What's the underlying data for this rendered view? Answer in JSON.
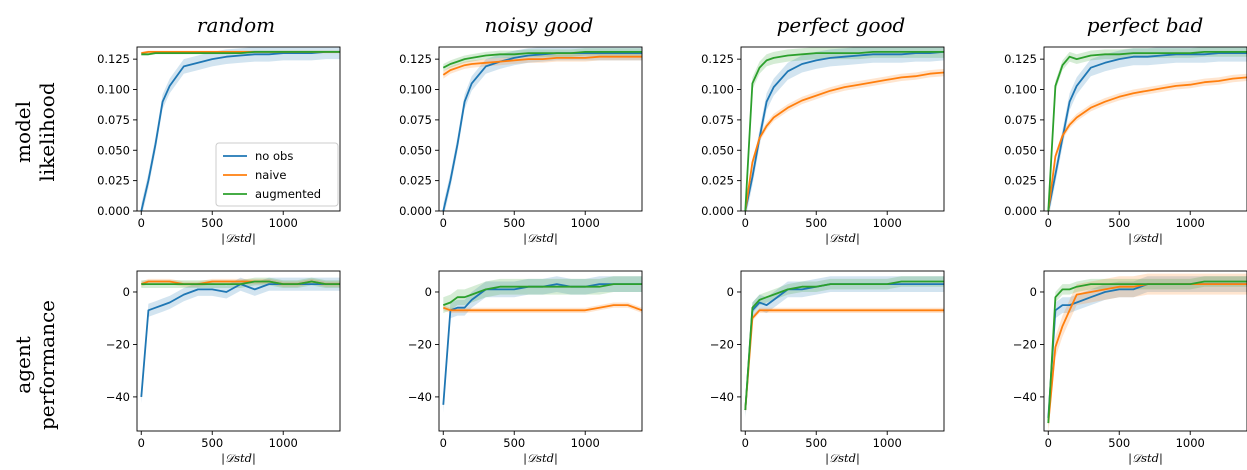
{
  "figure": {
    "col_titles": [
      "random",
      "noisy good",
      "perfect good",
      "perfect bad"
    ],
    "row_titles": [
      [
        "model",
        "likelihood"
      ],
      [
        "agent",
        "performance"
      ]
    ],
    "xlabel": "|𝒟std|"
  },
  "legend": {
    "entries": [
      {
        "name": "no obs",
        "color": "#1f77b4"
      },
      {
        "name": "naive",
        "color": "#ff7f0e"
      },
      {
        "name": "augmented",
        "color": "#2ca02c"
      }
    ],
    "placement": "lower-right of top-left panel"
  },
  "chart_data": [
    {
      "type": "line",
      "title": "random",
      "row": "model likelihood",
      "xlim": [
        -30,
        1400
      ],
      "ylim": [
        0,
        0.135
      ],
      "xticks": [
        "0",
        "500",
        "1000"
      ],
      "xtick_values": [
        0,
        500,
        1000
      ],
      "yticks": [
        "0.000",
        "0.025",
        "0.050",
        "0.075",
        "0.100",
        "0.125"
      ],
      "ytick_values": [
        0,
        0.025,
        0.05,
        0.075,
        0.1,
        0.125
      ],
      "x": [
        0,
        50,
        100,
        150,
        200,
        300,
        400,
        500,
        600,
        700,
        800,
        900,
        1000,
        1100,
        1200,
        1300,
        1400
      ],
      "series": [
        {
          "name": "no obs",
          "values": [
            0,
            0.025,
            0.055,
            0.09,
            0.103,
            0.119,
            0.122,
            0.125,
            0.127,
            0.128,
            0.129,
            0.129,
            0.13,
            0.13,
            0.13,
            0.131,
            0.131
          ],
          "band": 0.006
        },
        {
          "name": "naive",
          "values": [
            0.13,
            0.131,
            0.131,
            0.131,
            0.131,
            0.131,
            0.131,
            0.131,
            0.131,
            0.131,
            0.131,
            0.131,
            0.131,
            0.131,
            0.131,
            0.131,
            0.131
          ],
          "band": 0.001
        },
        {
          "name": "augmented",
          "values": [
            0.129,
            0.129,
            0.13,
            0.13,
            0.13,
            0.13,
            0.13,
            0.13,
            0.13,
            0.13,
            0.131,
            0.131,
            0.131,
            0.131,
            0.131,
            0.131,
            0.131
          ],
          "band": 0.001
        }
      ]
    },
    {
      "type": "line",
      "title": "noisy good",
      "row": "model likelihood",
      "xlim": [
        -30,
        1400
      ],
      "ylim": [
        0,
        0.135
      ],
      "xticks": [
        "0",
        "500",
        "1000"
      ],
      "xtick_values": [
        0,
        500,
        1000
      ],
      "yticks": [
        "0.000",
        "0.025",
        "0.050",
        "0.075",
        "0.100",
        "0.125"
      ],
      "ytick_values": [
        0,
        0.025,
        0.05,
        0.075,
        0.1,
        0.125
      ],
      "x": [
        0,
        50,
        100,
        150,
        200,
        300,
        400,
        500,
        600,
        700,
        800,
        900,
        1000,
        1100,
        1200,
        1300,
        1400
      ],
      "series": [
        {
          "name": "no obs",
          "values": [
            0,
            0.025,
            0.055,
            0.09,
            0.105,
            0.119,
            0.123,
            0.126,
            0.128,
            0.129,
            0.13,
            0.13,
            0.13,
            0.13,
            0.13,
            0.13,
            0.13
          ],
          "band": 0.006
        },
        {
          "name": "naive",
          "values": [
            0.112,
            0.116,
            0.118,
            0.12,
            0.121,
            0.122,
            0.123,
            0.124,
            0.125,
            0.125,
            0.126,
            0.126,
            0.126,
            0.127,
            0.127,
            0.127,
            0.127
          ],
          "band": 0.003
        },
        {
          "name": "augmented",
          "values": [
            0.118,
            0.121,
            0.123,
            0.125,
            0.126,
            0.128,
            0.129,
            0.129,
            0.13,
            0.13,
            0.13,
            0.13,
            0.131,
            0.131,
            0.131,
            0.131,
            0.131
          ],
          "band": 0.003
        }
      ]
    },
    {
      "type": "line",
      "title": "perfect good",
      "row": "model likelihood",
      "xlim": [
        -30,
        1400
      ],
      "ylim": [
        0,
        0.135
      ],
      "xticks": [
        "0",
        "500",
        "1000"
      ],
      "xtick_values": [
        0,
        500,
        1000
      ],
      "yticks": [
        "0.000",
        "0.025",
        "0.050",
        "0.075",
        "0.100",
        "0.125"
      ],
      "ytick_values": [
        0,
        0.025,
        0.05,
        0.075,
        0.1,
        0.125
      ],
      "x": [
        0,
        50,
        100,
        150,
        200,
        300,
        400,
        500,
        600,
        700,
        800,
        900,
        1000,
        1100,
        1200,
        1300,
        1400
      ],
      "series": [
        {
          "name": "no obs",
          "values": [
            0,
            0.028,
            0.06,
            0.09,
            0.102,
            0.115,
            0.121,
            0.124,
            0.126,
            0.127,
            0.128,
            0.129,
            0.129,
            0.129,
            0.13,
            0.13,
            0.131
          ],
          "band": 0.007
        },
        {
          "name": "naive",
          "values": [
            0,
            0.04,
            0.06,
            0.07,
            0.077,
            0.085,
            0.091,
            0.095,
            0.099,
            0.102,
            0.104,
            0.106,
            0.108,
            0.11,
            0.111,
            0.113,
            0.114
          ],
          "band": 0.003
        },
        {
          "name": "augmented",
          "values": [
            0,
            0.105,
            0.118,
            0.124,
            0.126,
            0.128,
            0.129,
            0.13,
            0.13,
            0.13,
            0.13,
            0.131,
            0.131,
            0.131,
            0.131,
            0.131,
            0.131
          ],
          "band": 0.005
        }
      ]
    },
    {
      "type": "line",
      "title": "perfect bad",
      "row": "model likelihood",
      "xlim": [
        -30,
        1400
      ],
      "ylim": [
        0,
        0.135
      ],
      "xticks": [
        "0",
        "500",
        "1000"
      ],
      "xtick_values": [
        0,
        500,
        1000
      ],
      "yticks": [
        "0.000",
        "0.025",
        "0.050",
        "0.075",
        "0.100",
        "0.125"
      ],
      "ytick_values": [
        0,
        0.025,
        0.05,
        0.075,
        0.1,
        0.125
      ],
      "x": [
        0,
        50,
        100,
        150,
        200,
        300,
        400,
        500,
        600,
        700,
        800,
        900,
        1000,
        1100,
        1200,
        1300,
        1400
      ],
      "series": [
        {
          "name": "no obs",
          "values": [
            0,
            0.03,
            0.06,
            0.09,
            0.103,
            0.118,
            0.122,
            0.125,
            0.127,
            0.127,
            0.128,
            0.129,
            0.129,
            0.129,
            0.13,
            0.13,
            0.13
          ],
          "band": 0.007
        },
        {
          "name": "naive",
          "values": [
            0,
            0.045,
            0.062,
            0.071,
            0.077,
            0.085,
            0.09,
            0.094,
            0.097,
            0.099,
            0.101,
            0.103,
            0.104,
            0.106,
            0.107,
            0.109,
            0.11
          ],
          "band": 0.003
        },
        {
          "name": "augmented",
          "values": [
            0,
            0.103,
            0.12,
            0.127,
            0.125,
            0.128,
            0.129,
            0.129,
            0.13,
            0.13,
            0.13,
            0.13,
            0.13,
            0.131,
            0.131,
            0.131,
            0.131
          ],
          "band": 0.004
        }
      ]
    },
    {
      "type": "line",
      "title": "random",
      "row": "agent performance",
      "xlim": [
        -30,
        1400
      ],
      "ylim": [
        -53,
        8
      ],
      "xticks": [
        "0",
        "500",
        "1000"
      ],
      "xtick_values": [
        0,
        500,
        1000
      ],
      "yticks": [
        "−40",
        "−20",
        "0"
      ],
      "ytick_values": [
        -40,
        -20,
        0
      ],
      "x": [
        0,
        50,
        100,
        150,
        200,
        300,
        400,
        500,
        600,
        700,
        800,
        900,
        1000,
        1100,
        1200,
        1300,
        1400
      ],
      "series": [
        {
          "name": "no obs",
          "values": [
            -40,
            -7,
            -6,
            -5,
            -4,
            -1,
            1,
            1,
            0,
            3,
            1,
            3,
            3,
            3,
            3,
            3,
            3
          ],
          "band": 2.5
        },
        {
          "name": "naive",
          "values": [
            3,
            4,
            4,
            4,
            4,
            3,
            3,
            4,
            4,
            4,
            4,
            4,
            3,
            3,
            4,
            3,
            3
          ],
          "band": 1
        },
        {
          "name": "augmented",
          "values": [
            3,
            3,
            3,
            3,
            3,
            3,
            3,
            3,
            3,
            3,
            4,
            4,
            3,
            3,
            4,
            3,
            3
          ],
          "band": 1.5
        }
      ]
    },
    {
      "type": "line",
      "title": "noisy good",
      "row": "agent performance",
      "xlim": [
        -30,
        1400
      ],
      "ylim": [
        -53,
        8
      ],
      "xticks": [
        "0",
        "500",
        "1000"
      ],
      "xtick_values": [
        0,
        500,
        1000
      ],
      "yticks": [
        "−40",
        "−20",
        "0"
      ],
      "ytick_values": [
        -40,
        -20,
        0
      ],
      "x": [
        0,
        50,
        100,
        150,
        200,
        300,
        400,
        500,
        600,
        700,
        800,
        900,
        1000,
        1100,
        1200,
        1300,
        1400
      ],
      "series": [
        {
          "name": "no obs",
          "values": [
            -43,
            -7,
            -6,
            -6,
            -3,
            1,
            1,
            1,
            2,
            2,
            3,
            2,
            2,
            3,
            3,
            3,
            3
          ],
          "band": 3
        },
        {
          "name": "naive",
          "values": [
            -6,
            -7,
            -7,
            -7,
            -7,
            -7,
            -7,
            -7,
            -7,
            -7,
            -7,
            -7,
            -7,
            -6,
            -5,
            -5,
            -7
          ],
          "band": 1
        },
        {
          "name": "augmented",
          "values": [
            -5,
            -4,
            -2,
            -2,
            -1,
            1,
            2,
            2,
            2,
            2,
            2,
            2,
            2,
            2,
            3,
            3,
            3
          ],
          "band": 3
        }
      ]
    },
    {
      "type": "line",
      "title": "perfect good",
      "row": "agent performance",
      "xlim": [
        -30,
        1400
      ],
      "ylim": [
        -53,
        8
      ],
      "xticks": [
        "0",
        "500",
        "1000"
      ],
      "xtick_values": [
        0,
        500,
        1000
      ],
      "yticks": [
        "−40",
        "−20",
        "0"
      ],
      "ytick_values": [
        -40,
        -20,
        0
      ],
      "x": [
        0,
        50,
        100,
        150,
        200,
        300,
        400,
        500,
        600,
        700,
        800,
        900,
        1000,
        1100,
        1200,
        1300,
        1400
      ],
      "series": [
        {
          "name": "no obs",
          "values": [
            -45,
            -7,
            -4,
            -5,
            -3,
            1,
            1,
            2,
            3,
            3,
            3,
            3,
            3,
            3,
            3,
            3,
            3
          ],
          "band": 3
        },
        {
          "name": "naive",
          "values": [
            -45,
            -10,
            -7,
            -7,
            -7,
            -7,
            -7,
            -7,
            -7,
            -7,
            -7,
            -7,
            -7,
            -7,
            -7,
            -7,
            -7
          ],
          "band": 1
        },
        {
          "name": "augmented",
          "values": [
            -45,
            -6,
            -3,
            -2,
            -1,
            1,
            2,
            2,
            3,
            3,
            3,
            3,
            3,
            4,
            4,
            4,
            4
          ],
          "band": 2
        }
      ]
    },
    {
      "type": "line",
      "title": "perfect bad",
      "row": "agent performance",
      "xlim": [
        -30,
        1400
      ],
      "ylim": [
        -53,
        8
      ],
      "xticks": [
        "0",
        "500",
        "1000"
      ],
      "xtick_values": [
        0,
        500,
        1000
      ],
      "yticks": [
        "−40",
        "−20",
        "0"
      ],
      "ytick_values": [
        -40,
        -20,
        0
      ],
      "x": [
        0,
        50,
        100,
        150,
        200,
        300,
        400,
        500,
        600,
        700,
        800,
        900,
        1000,
        1100,
        1200,
        1300,
        1400
      ],
      "series": [
        {
          "name": "no obs",
          "values": [
            -48,
            -7,
            -5,
            -5,
            -4,
            -2,
            0,
            1,
            1,
            3,
            3,
            3,
            3,
            3,
            3,
            3,
            3
          ],
          "band": 3
        },
        {
          "name": "naive",
          "values": [
            -50,
            -21,
            -13,
            -7,
            -1,
            0,
            1,
            2,
            2,
            3,
            3,
            3,
            3,
            3,
            3,
            3,
            3
          ],
          "band": 4
        },
        {
          "name": "augmented",
          "values": [
            -50,
            -2,
            1,
            1,
            2,
            3,
            3,
            3,
            3,
            3,
            3,
            3,
            3,
            4,
            4,
            4,
            4
          ],
          "band": 2
        }
      ]
    }
  ]
}
